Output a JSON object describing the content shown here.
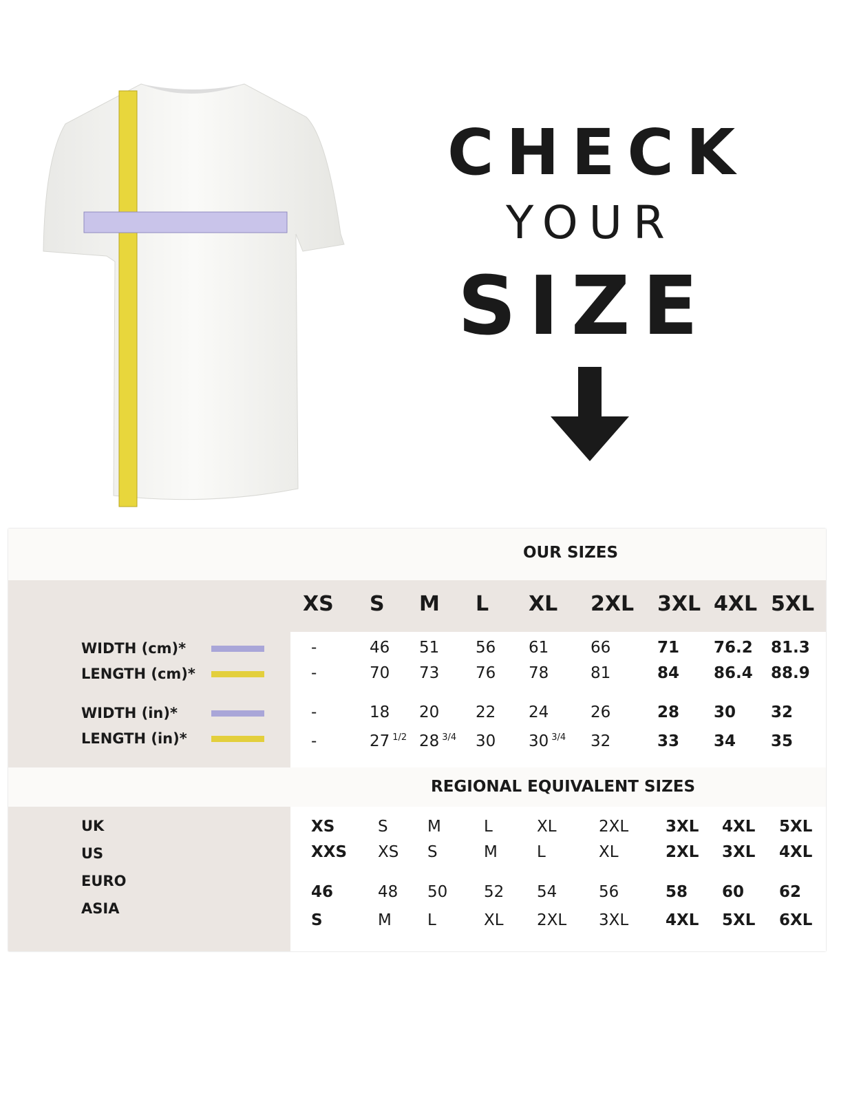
{
  "heading": {
    "line1": "CHECK",
    "line2": "YOUR",
    "line3": "SIZE",
    "arrow_icon": "arrow-down-icon"
  },
  "colors": {
    "width_tape": "#a9a6d8",
    "length_tape": "#e3cf3c",
    "band": "#ebe6e2"
  },
  "our_sizes": {
    "title": "OUR SIZES",
    "sizes": [
      "XS",
      "S",
      "M",
      "L",
      "XL",
      "2XL",
      "3XL",
      "4XL",
      "5XL"
    ],
    "rows": [
      {
        "label": "WIDTH (cm)*",
        "tape": "width",
        "values": [
          {
            "v": "-"
          },
          {
            "v": "46"
          },
          {
            "v": "51"
          },
          {
            "v": "56"
          },
          {
            "v": "61"
          },
          {
            "v": "66"
          },
          {
            "v": "71"
          },
          {
            "v": "76.2"
          },
          {
            "v": "81.3"
          }
        ]
      },
      {
        "label": "LENGTH (cm)*",
        "tape": "length",
        "values": [
          {
            "v": "-"
          },
          {
            "v": "70"
          },
          {
            "v": "73"
          },
          {
            "v": "76"
          },
          {
            "v": "78"
          },
          {
            "v": "81"
          },
          {
            "v": "84"
          },
          {
            "v": "86.4"
          },
          {
            "v": "88.9"
          }
        ]
      },
      {
        "label": "WIDTH (in)*",
        "tape": "width",
        "values": [
          {
            "v": "-"
          },
          {
            "v": "18"
          },
          {
            "v": "20"
          },
          {
            "v": "22"
          },
          {
            "v": "24"
          },
          {
            "v": "26"
          },
          {
            "v": "28"
          },
          {
            "v": "30"
          },
          {
            "v": "32"
          }
        ]
      },
      {
        "label": "LENGTH (in)*",
        "tape": "length",
        "values": [
          {
            "v": "-"
          },
          {
            "v": "27",
            "frac": "1/2"
          },
          {
            "v": "28",
            "frac": "3/4"
          },
          {
            "v": "30"
          },
          {
            "v": "30",
            "frac": "3/4"
          },
          {
            "v": "32"
          },
          {
            "v": "33"
          },
          {
            "v": "34"
          },
          {
            "v": "35"
          }
        ]
      }
    ]
  },
  "regional": {
    "title": "REGIONAL EQUIVALENT SIZES",
    "labels": [
      "UK",
      "US",
      "EURO",
      "ASIA"
    ],
    "rows": [
      [
        "XS",
        "S",
        "M",
        "L",
        "XL",
        "2XL",
        "3XL",
        "4XL",
        "5XL"
      ],
      [
        "XXS",
        "XS",
        "S",
        "M",
        "L",
        "XL",
        "2XL",
        "3XL",
        "4XL"
      ],
      [
        "46",
        "48",
        "50",
        "52",
        "54",
        "56",
        "58",
        "60",
        "62"
      ],
      [
        "S",
        "M",
        "L",
        "XL",
        "2XL",
        "3XL",
        "4XL",
        "5XL",
        "6XL"
      ]
    ]
  }
}
